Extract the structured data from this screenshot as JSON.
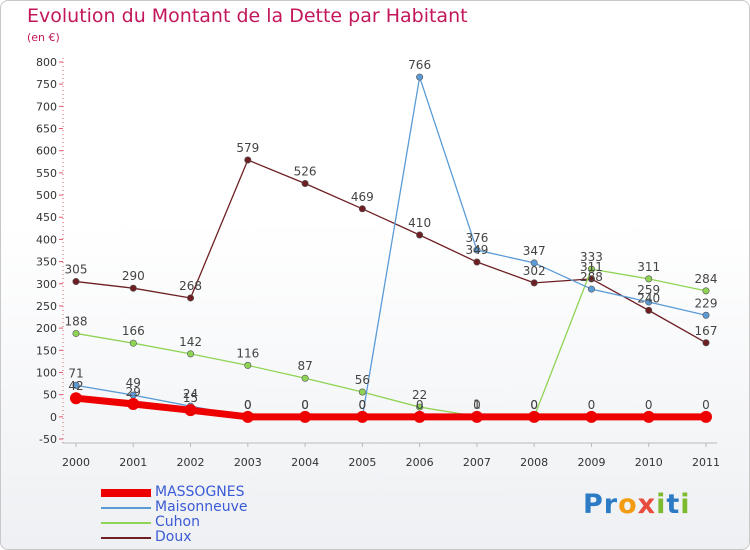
{
  "chart_data": {
    "type": "line",
    "title": "Evolution du Montant de la Dette par Habitant",
    "subtitle": "(en €)",
    "xlabel": "",
    "ylabel": "",
    "ylim": [
      -50,
      800
    ],
    "yticks": [
      -50,
      0,
      50,
      100,
      150,
      200,
      250,
      300,
      350,
      400,
      450,
      500,
      550,
      600,
      650,
      700,
      750,
      800
    ],
    "categories": [
      "2000",
      "2001",
      "2002",
      "2003",
      "2004",
      "2005",
      "2006",
      "2007",
      "2008",
      "2009",
      "2010",
      "2011"
    ],
    "grid": false,
    "legend_position": "bottom-left",
    "series": [
      {
        "name": "MASSOGNES",
        "color": "#ee0000",
        "values": [
          42,
          29,
          15,
          0,
          0,
          0,
          0,
          0,
          0,
          0,
          0,
          0
        ],
        "labels": [
          "42",
          "29",
          "15",
          "0",
          "0",
          "0",
          "0",
          "0",
          "0",
          "0",
          "0",
          "0"
        ]
      },
      {
        "name": "Maisonneuve",
        "color": "#5b9bd5",
        "values": [
          71,
          49,
          24,
          0,
          0,
          0,
          766,
          376,
          347,
          288,
          259,
          229
        ],
        "labels": [
          "71",
          "49",
          "24",
          "0",
          "0",
          "0",
          "766",
          "376",
          "347",
          "288",
          "259",
          "229"
        ]
      },
      {
        "name": "Cuhon",
        "color": "#8fd455",
        "values": [
          188,
          166,
          142,
          116,
          87,
          56,
          22,
          1,
          0,
          333,
          311,
          284
        ],
        "labels": [
          "188",
          "166",
          "142",
          "116",
          "87",
          "56",
          "22",
          "1",
          "0",
          "333",
          "311",
          "284"
        ]
      },
      {
        "name": "Doux",
        "color": "#6e1f24",
        "values": [
          305,
          290,
          268,
          579,
          526,
          469,
          410,
          349,
          302,
          311,
          240,
          167
        ],
        "labels": [
          "305",
          "290",
          "268",
          "579",
          "526",
          "469",
          "410",
          "349",
          "302",
          "311",
          "240",
          "167"
        ]
      }
    ]
  },
  "logo": {
    "text": "Proxiti"
  }
}
